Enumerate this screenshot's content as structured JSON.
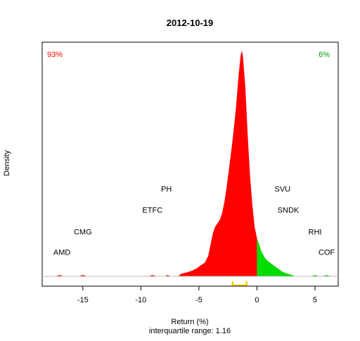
{
  "chart_data": {
    "type": "area",
    "title": "2012-10-19",
    "xlabel": "Return (%)",
    "ylabel": "Density",
    "subtitle": "interquartile range: 1.16",
    "xlim": [
      -18.5,
      7.0
    ],
    "x_ticks": [
      -15,
      -10,
      -5,
      0,
      5
    ],
    "y_axis_shown": false,
    "split_at": 0,
    "pct_negative": "93%",
    "pct_positive": "6%",
    "colors": {
      "negative": "#ff0000",
      "positive": "#00dd00",
      "pct_negative": "#ff0000",
      "pct_positive": "#009900",
      "iqr": "#ffcc00",
      "baseline": "#bbbbbb"
    },
    "iqr_range": [
      -2.1,
      -0.9
    ],
    "density_max": 1.0,
    "density": [
      [
        -17.4,
        0.0
      ],
      [
        -17.0,
        0.006
      ],
      [
        -16.6,
        0.0
      ],
      [
        -15.4,
        0.0
      ],
      [
        -15.0,
        0.006
      ],
      [
        -14.6,
        0.0
      ],
      [
        -9.4,
        0.0
      ],
      [
        -9.0,
        0.006
      ],
      [
        -8.6,
        0.0
      ],
      [
        -8.0,
        0.0
      ],
      [
        -7.7,
        0.006
      ],
      [
        -7.4,
        0.0
      ],
      [
        -6.8,
        0.0
      ],
      [
        -6.5,
        0.012
      ],
      [
        -6.0,
        0.018
      ],
      [
        -5.6,
        0.025
      ],
      [
        -5.2,
        0.035
      ],
      [
        -4.8,
        0.05
      ],
      [
        -4.5,
        0.06
      ],
      [
        -4.2,
        0.09
      ],
      [
        -4.0,
        0.14
      ],
      [
        -3.8,
        0.19
      ],
      [
        -3.6,
        0.22
      ],
      [
        -3.4,
        0.235
      ],
      [
        -3.2,
        0.25
      ],
      [
        -3.0,
        0.28
      ],
      [
        -2.8,
        0.33
      ],
      [
        -2.6,
        0.4
      ],
      [
        -2.4,
        0.48
      ],
      [
        -2.2,
        0.56
      ],
      [
        -2.0,
        0.65
      ],
      [
        -1.8,
        0.75
      ],
      [
        -1.6,
        0.88
      ],
      [
        -1.4,
        0.98
      ],
      [
        -1.3,
        1.0
      ],
      [
        -1.2,
        0.97
      ],
      [
        -1.0,
        0.84
      ],
      [
        -0.8,
        0.63
      ],
      [
        -0.6,
        0.45
      ],
      [
        -0.4,
        0.32
      ],
      [
        -0.2,
        0.22
      ],
      [
        0.0,
        0.17
      ],
      [
        0.2,
        0.14
      ],
      [
        0.4,
        0.11
      ],
      [
        0.7,
        0.08
      ],
      [
        1.0,
        0.065
      ],
      [
        1.4,
        0.05
      ],
      [
        1.8,
        0.035
      ],
      [
        2.2,
        0.02
      ],
      [
        2.6,
        0.012
      ],
      [
        3.0,
        0.006
      ],
      [
        3.3,
        0.0
      ],
      [
        4.6,
        0.0
      ],
      [
        5.0,
        0.006
      ],
      [
        5.4,
        0.0
      ],
      [
        5.6,
        0.0
      ],
      [
        6.0,
        0.006
      ],
      [
        6.4,
        0.0
      ]
    ],
    "annotations": [
      {
        "label": "AMD",
        "x": -16.8,
        "height": 0.095
      },
      {
        "label": "CMG",
        "x": -15.0,
        "height": 0.185
      },
      {
        "label": "ETFC",
        "x": -9.0,
        "height": 0.282
      },
      {
        "label": "PH",
        "x": -7.8,
        "height": 0.375
      },
      {
        "label": "SVU",
        "x": 2.2,
        "height": 0.375
      },
      {
        "label": "SNDK",
        "x": 2.7,
        "height": 0.282
      },
      {
        "label": "RHI",
        "x": 5.0,
        "height": 0.185
      },
      {
        "label": "COF",
        "x": 6.0,
        "height": 0.095
      }
    ]
  }
}
